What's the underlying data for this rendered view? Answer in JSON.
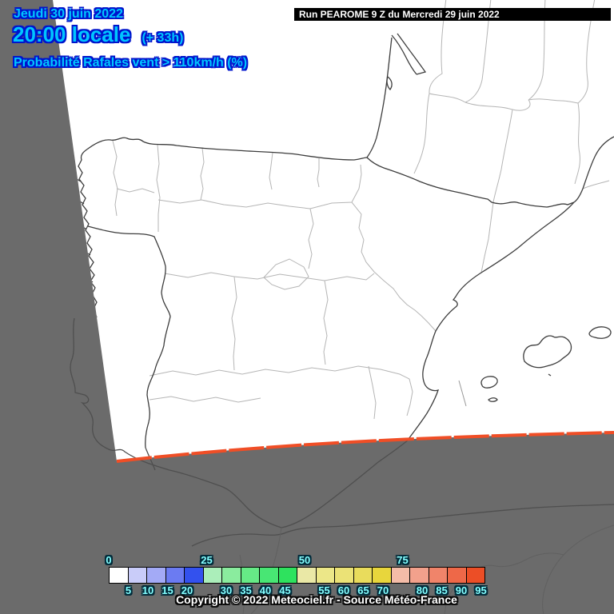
{
  "header": {
    "date": "Jeudi 30 juin 2022",
    "time": "20:00 locale",
    "offset": "(+ 33h)",
    "parameter": "Probabilité Rafales vent > 110km/h (%)",
    "run": "Run PEAROME 9 Z du Mercredi 29 juin 2022",
    "text_color": "#00c6ff",
    "outline_color": "#0014cc"
  },
  "map": {
    "background_color": "#6b6b6b",
    "domain_fill": "#ffffff",
    "boundary_color": "#f04e26",
    "coast_color": "#3d3d3d",
    "border_light_color": "#b5b5b5",
    "outside_coast_color": "#4f4f4f",
    "outside_inland_color": "#606060"
  },
  "legend": {
    "values": [
      0,
      5,
      10,
      15,
      20,
      25,
      30,
      35,
      40,
      45,
      50,
      55,
      60,
      65,
      70,
      75,
      80,
      85,
      90,
      95
    ],
    "colors": [
      "#ffffff",
      "#c9ccf9",
      "#a3aaf6",
      "#6b7bf2",
      "#3351ee",
      "#abeeba",
      "#8aec9e",
      "#66ea86",
      "#48e674",
      "#2ee25e",
      "#eae8a6",
      "#ece788",
      "#ebe276",
      "#e9dc5c",
      "#e8d63c",
      "#f4bca8",
      "#f2a18c",
      "#f0846a",
      "#ee6848",
      "#ec4e26"
    ],
    "tick_color": "#84ffff",
    "tick_outline": "#002b3a"
  },
  "footer": {
    "copyright": "Copyright © 2022 Meteociel.fr - Source Météo-France"
  }
}
